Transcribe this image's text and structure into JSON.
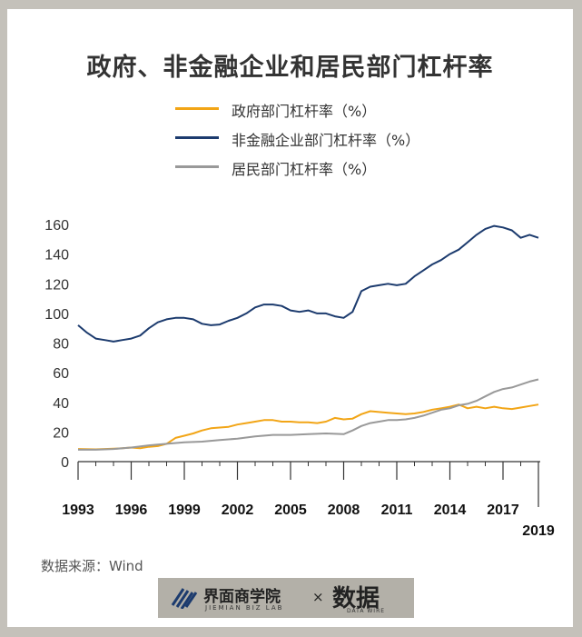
{
  "title": "政府、非金融企业和居民部门杠杆率",
  "source": "数据来源：Wind",
  "footer": {
    "brand": "界面商学院",
    "brand_sub": "JIEMIAN BIZ LAB",
    "separator": "×",
    "partner": "数据",
    "partner_sub": "DATA WIRE"
  },
  "colors": {
    "government": "#f2a516",
    "corporate": "#1c3b6e",
    "household": "#999999",
    "axis": "#333333"
  },
  "chart_data": {
    "type": "line",
    "title": "政府、非金融企业和居民部门杠杆率",
    "xlabel": "",
    "ylabel": "",
    "xlim": [
      1993,
      2019
    ],
    "ylim": [
      0,
      160
    ],
    "yticks": [
      0,
      20,
      40,
      60,
      80,
      100,
      120,
      140,
      160
    ],
    "xticks": [
      "1993",
      "1996",
      "1999",
      "2002",
      "2005",
      "2008",
      "2011",
      "2014",
      "2017",
      "2019"
    ],
    "grid": false,
    "legend_position": "top-center",
    "series": [
      {
        "name": "政府部门杠杆率（%）",
        "color": "#f2a516",
        "points": [
          [
            1993,
            8.5
          ],
          [
            1994,
            8.3
          ],
          [
            1995,
            8.7
          ],
          [
            1995.5,
            9.0
          ],
          [
            1996,
            9.5
          ],
          [
            1996.5,
            9.0
          ],
          [
            1997,
            10.0
          ],
          [
            1997.5,
            10.5
          ],
          [
            1998,
            12.0
          ],
          [
            1998.5,
            16.0
          ],
          [
            1999,
            17.5
          ],
          [
            1999.5,
            19.0
          ],
          [
            2000,
            21.0
          ],
          [
            2000.5,
            22.5
          ],
          [
            2001,
            23.0
          ],
          [
            2001.5,
            23.5
          ],
          [
            2002,
            25.0
          ],
          [
            2002.5,
            26.0
          ],
          [
            2003,
            27.0
          ],
          [
            2003.5,
            28.0
          ],
          [
            2004,
            28.0
          ],
          [
            2004.5,
            27.0
          ],
          [
            2005,
            27.0
          ],
          [
            2005.5,
            26.5
          ],
          [
            2006,
            26.5
          ],
          [
            2006.5,
            26.0
          ],
          [
            2007,
            27.0
          ],
          [
            2007.5,
            29.5
          ],
          [
            2008,
            28.5
          ],
          [
            2008.5,
            29.0
          ],
          [
            2009,
            32.0
          ],
          [
            2009.5,
            34.0
          ],
          [
            2010,
            33.5
          ],
          [
            2010.5,
            33.0
          ],
          [
            2011,
            32.5
          ],
          [
            2011.5,
            32.0
          ],
          [
            2012,
            32.5
          ],
          [
            2012.5,
            33.5
          ],
          [
            2013,
            35.0
          ],
          [
            2013.5,
            36.0
          ],
          [
            2014,
            37.0
          ],
          [
            2014.5,
            38.5
          ],
          [
            2015,
            36.0
          ],
          [
            2015.5,
            37.0
          ],
          [
            2016,
            36.0
          ],
          [
            2016.5,
            37.0
          ],
          [
            2017,
            36.0
          ],
          [
            2017.5,
            35.5
          ],
          [
            2018,
            36.5
          ],
          [
            2018.5,
            37.5
          ],
          [
            2019,
            38.5
          ]
        ]
      },
      {
        "name": "非金融企业部门杠杆率（%）",
        "color": "#1c3b6e",
        "points": [
          [
            1993,
            92
          ],
          [
            1993.5,
            87
          ],
          [
            1994,
            83
          ],
          [
            1994.5,
            82
          ],
          [
            1995,
            81
          ],
          [
            1995.5,
            82
          ],
          [
            1996,
            83
          ],
          [
            1996.5,
            85
          ],
          [
            1997,
            90
          ],
          [
            1997.5,
            94
          ],
          [
            1998,
            96
          ],
          [
            1998.5,
            97
          ],
          [
            1999,
            97
          ],
          [
            1999.5,
            96
          ],
          [
            2000,
            93
          ],
          [
            2000.5,
            92
          ],
          [
            2001,
            92.5
          ],
          [
            2001.5,
            95
          ],
          [
            2002,
            97
          ],
          [
            2002.5,
            100
          ],
          [
            2003,
            104
          ],
          [
            2003.5,
            106
          ],
          [
            2004,
            106
          ],
          [
            2004.5,
            105
          ],
          [
            2005,
            102
          ],
          [
            2005.5,
            101
          ],
          [
            2006,
            102
          ],
          [
            2006.5,
            100
          ],
          [
            2007,
            100
          ],
          [
            2007.5,
            98
          ],
          [
            2008,
            97
          ],
          [
            2008.5,
            101
          ],
          [
            2009,
            115
          ],
          [
            2009.5,
            118
          ],
          [
            2010,
            119
          ],
          [
            2010.5,
            120
          ],
          [
            2011,
            119
          ],
          [
            2011.5,
            120
          ],
          [
            2012,
            125
          ],
          [
            2012.5,
            129
          ],
          [
            2013,
            133
          ],
          [
            2013.5,
            136
          ],
          [
            2014,
            140
          ],
          [
            2014.5,
            143
          ],
          [
            2015,
            148
          ],
          [
            2015.5,
            153
          ],
          [
            2016,
            157
          ],
          [
            2016.5,
            159
          ],
          [
            2017,
            158
          ],
          [
            2017.5,
            156
          ],
          [
            2018,
            151
          ],
          [
            2018.5,
            153
          ],
          [
            2019,
            151
          ]
        ]
      },
      {
        "name": "居民部门杠杆率（%）",
        "color": "#999999",
        "points": [
          [
            1993,
            8
          ],
          [
            1994,
            8
          ],
          [
            1995,
            8.5
          ],
          [
            1996,
            9.5
          ],
          [
            1997,
            11
          ],
          [
            1998,
            12
          ],
          [
            1999,
            13
          ],
          [
            2000,
            13.5
          ],
          [
            2001,
            14.5
          ],
          [
            2002,
            15.5
          ],
          [
            2003,
            17
          ],
          [
            2004,
            18
          ],
          [
            2005,
            18
          ],
          [
            2006,
            18.5
          ],
          [
            2007,
            19
          ],
          [
            2008,
            18.5
          ],
          [
            2008.5,
            21
          ],
          [
            2009,
            24
          ],
          [
            2009.5,
            26
          ],
          [
            2010,
            27
          ],
          [
            2010.5,
            28
          ],
          [
            2011,
            28
          ],
          [
            2011.5,
            28.5
          ],
          [
            2012,
            29.5
          ],
          [
            2012.5,
            31
          ],
          [
            2013,
            33
          ],
          [
            2013.5,
            35
          ],
          [
            2014,
            36
          ],
          [
            2014.5,
            38
          ],
          [
            2015,
            39
          ],
          [
            2015.5,
            41
          ],
          [
            2016,
            44
          ],
          [
            2016.5,
            47
          ],
          [
            2017,
            49
          ],
          [
            2017.5,
            50
          ],
          [
            2018,
            52
          ],
          [
            2018.5,
            54
          ],
          [
            2019,
            55.5
          ]
        ]
      }
    ]
  }
}
